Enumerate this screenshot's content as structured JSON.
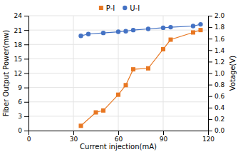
{
  "chart_data": {
    "type": "line",
    "xlabel": "Current injection(mA)",
    "ylabel": "Fiber Output Power(mw)",
    "y2label": "Votage(V)",
    "xlim": [
      0,
      120
    ],
    "xticks": [
      0,
      30,
      60,
      90,
      120
    ],
    "ylim": [
      0.0,
      24.0
    ],
    "yticks": [
      0,
      3,
      6,
      9,
      12,
      15,
      18,
      21,
      24
    ],
    "y2lim": [
      0.0,
      2.0
    ],
    "y2ticks": [
      {
        "value": 0,
        "label": "0.0"
      },
      0.2,
      0.4,
      0.6,
      0.8,
      {
        "value": 1,
        "label": "1.0"
      },
      1.2,
      1.4,
      1.6,
      1.8,
      {
        "value": 2,
        "label": "2.0"
      }
    ],
    "grid": true,
    "legend": "top",
    "series": [
      {
        "name": "P-I",
        "color": "#e87722",
        "marker": "square",
        "x": [
          35,
          45,
          50,
          60,
          65,
          70,
          80,
          90,
          95,
          110,
          115
        ],
        "values": [
          1.0,
          3.8,
          4.2,
          7.5,
          9.5,
          12.8,
          13.0,
          17.0,
          19.0,
          20.5,
          21.0
        ]
      },
      {
        "name": "U-I",
        "color": "#4472c4",
        "marker": "circle",
        "axis": "y2",
        "x": [
          35,
          40,
          50,
          60,
          65,
          70,
          80,
          90,
          95,
          110,
          115
        ],
        "values": [
          1.65,
          1.68,
          1.7,
          1.72,
          1.73,
          1.75,
          1.77,
          1.79,
          1.8,
          1.82,
          1.85
        ]
      }
    ]
  }
}
